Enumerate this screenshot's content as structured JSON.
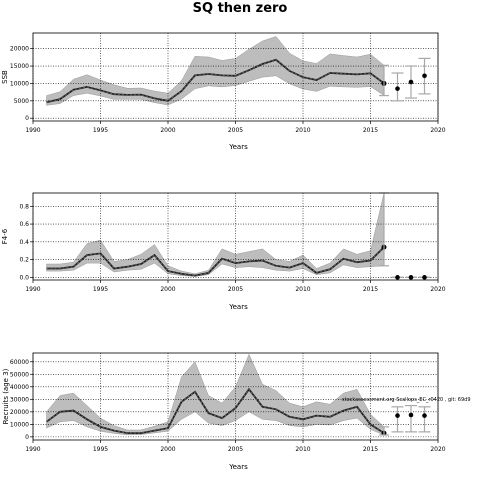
{
  "title": "SQ then zero",
  "colors": {
    "band": "#bdbdbd",
    "line": "#222222",
    "point": "#000000",
    "errorbar": "#a8a8a8",
    "grid": "#000000"
  },
  "annotation": "stockassessment.org  Scallops_EC_r0420 , git: 69d9",
  "chart_data": [
    {
      "type": "line",
      "name": "SSB-panel",
      "ylabel": "SSB",
      "xlabel": "Years",
      "xlim": [
        1990,
        2020
      ],
      "ylim": [
        -800,
        24500
      ],
      "xticks": [
        1990,
        1995,
        2000,
        2005,
        2010,
        2015,
        2020
      ],
      "yticks": [
        0,
        5000,
        10000,
        15000,
        20000
      ],
      "x": [
        1991,
        1992,
        1993,
        1994,
        1995,
        1996,
        1997,
        1998,
        1999,
        2000,
        2001,
        2002,
        2003,
        2004,
        2005,
        2006,
        2007,
        2008,
        2009,
        2010,
        2011,
        2012,
        2013,
        2014,
        2015,
        2016
      ],
      "estimate": [
        4600,
        5500,
        8200,
        9000,
        8000,
        6900,
        6700,
        6800,
        5700,
        5000,
        7800,
        12300,
        12700,
        12300,
        12200,
        13800,
        15600,
        16800,
        13600,
        11800,
        11000,
        13000,
        12800,
        12600,
        12900,
        10000
      ],
      "lower": [
        3700,
        4200,
        6500,
        7200,
        6400,
        5400,
        5400,
        5400,
        4500,
        3800,
        5500,
        8500,
        9300,
        9000,
        9400,
        10600,
        11800,
        12200,
        9900,
        8400,
        7700,
        9200,
        9000,
        8900,
        9100,
        6500
      ],
      "upper": [
        6500,
        7600,
        11200,
        12500,
        11000,
        9600,
        8600,
        8700,
        7800,
        7200,
        10800,
        17800,
        17600,
        16600,
        17200,
        19800,
        22200,
        23500,
        18700,
        16500,
        15700,
        18500,
        18000,
        17600,
        18400,
        15200
      ],
      "forecast": {
        "x": [
          2017,
          2018,
          2019
        ],
        "median": [
          8500,
          10400,
          12200
        ],
        "low": [
          5000,
          5800,
          7000
        ],
        "high": [
          13000,
          15000,
          17200
        ]
      }
    },
    {
      "type": "line",
      "name": "F-panel",
      "ylabel": "F4-6",
      "xlabel": "Years",
      "xlim": [
        1990,
        2020
      ],
      "ylim": [
        -0.03,
        0.95
      ],
      "xticks": [
        1990,
        1995,
        2000,
        2005,
        2010,
        2015,
        2020
      ],
      "yticks": [
        0.0,
        0.2,
        0.4,
        0.6,
        0.8
      ],
      "x": [
        1991,
        1992,
        1993,
        1994,
        1995,
        1996,
        1997,
        1998,
        1999,
        2000,
        2001,
        2002,
        2003,
        2004,
        2005,
        2006,
        2007,
        2008,
        2009,
        2010,
        2011,
        2012,
        2013,
        2014,
        2015,
        2016
      ],
      "estimate": [
        0.1,
        0.1,
        0.12,
        0.25,
        0.27,
        0.1,
        0.12,
        0.15,
        0.25,
        0.07,
        0.04,
        0.02,
        0.05,
        0.21,
        0.16,
        0.18,
        0.19,
        0.13,
        0.11,
        0.16,
        0.05,
        0.09,
        0.21,
        0.17,
        0.19,
        0.34
      ],
      "lower": [
        0.07,
        0.07,
        0.08,
        0.16,
        0.16,
        0.06,
        0.08,
        0.09,
        0.16,
        0.04,
        0.02,
        0.01,
        0.03,
        0.15,
        0.11,
        0.12,
        0.11,
        0.08,
        0.07,
        0.1,
        0.03,
        0.05,
        0.14,
        0.11,
        0.12,
        0.13
      ],
      "upper": [
        0.15,
        0.15,
        0.17,
        0.38,
        0.42,
        0.18,
        0.2,
        0.26,
        0.37,
        0.13,
        0.07,
        0.04,
        0.08,
        0.32,
        0.26,
        0.29,
        0.32,
        0.2,
        0.18,
        0.25,
        0.1,
        0.16,
        0.32,
        0.26,
        0.3,
        0.95
      ],
      "forecast": {
        "x": [
          2017,
          2018,
          2019
        ],
        "median": [
          0,
          0,
          0
        ],
        "low": [
          0,
          0,
          0
        ],
        "high": [
          0,
          0,
          0
        ]
      }
    },
    {
      "type": "line",
      "name": "Recruits-panel",
      "ylabel": "Recruits (age 3)",
      "xlabel": "Years",
      "xlim": [
        1990,
        2020
      ],
      "ylim": [
        -2500,
        67000
      ],
      "xticks": [
        1990,
        1995,
        2000,
        2005,
        2010,
        2015,
        2020
      ],
      "yticks": [
        0,
        10000,
        20000,
        30000,
        40000,
        50000,
        60000
      ],
      "x": [
        1991,
        1992,
        1993,
        1994,
        1995,
        1996,
        1997,
        1998,
        1999,
        2000,
        2001,
        2002,
        2003,
        2004,
        2005,
        2006,
        2007,
        2008,
        2009,
        2010,
        2011,
        2012,
        2013,
        2014,
        2015,
        2016
      ],
      "estimate": [
        12000,
        20000,
        21000,
        14000,
        8000,
        5000,
        3000,
        3000,
        5000,
        7000,
        28000,
        36000,
        19000,
        15000,
        23000,
        38000,
        24000,
        22000,
        16000,
        14000,
        17000,
        16000,
        21000,
        24000,
        10000,
        3000
      ],
      "lower": [
        7000,
        12000,
        13000,
        8000,
        4500,
        2800,
        1600,
        1800,
        3200,
        4500,
        14000,
        20000,
        11000,
        9000,
        13000,
        20000,
        14000,
        13000,
        9000,
        8000,
        10000,
        9500,
        13000,
        15000,
        6000,
        1500
      ],
      "upper": [
        20000,
        33000,
        35000,
        25000,
        15000,
        9000,
        5500,
        5500,
        8500,
        12000,
        48000,
        60000,
        33000,
        27000,
        40000,
        66000,
        42000,
        37000,
        27000,
        24000,
        28000,
        26000,
        35000,
        38000,
        18000,
        8000
      ],
      "forecast": {
        "x": [
          2017,
          2018,
          2019
        ],
        "median": [
          17000,
          17500,
          17000
        ],
        "low": [
          4000,
          4000,
          4000
        ],
        "high": [
          24000,
          25000,
          24000
        ]
      }
    }
  ]
}
